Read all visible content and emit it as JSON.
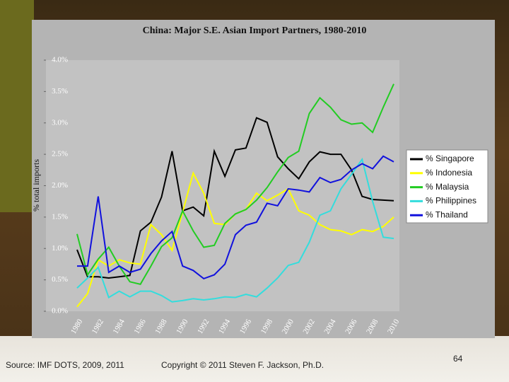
{
  "chart_data": {
    "type": "line",
    "title": "China: Major S.E. Asian Import Partners, 1980-2010",
    "y_label": "% total imports",
    "categories": [
      "1980",
      null,
      "1982",
      null,
      "1984",
      null,
      "1986",
      null,
      "1988",
      null,
      "1990",
      null,
      "1992",
      null,
      "1994",
      null,
      "1996",
      null,
      "1998",
      null,
      "2000",
      null,
      "2002",
      null,
      "2004",
      null,
      "2006",
      null,
      "2008",
      null,
      "2010"
    ],
    "series": [
      {
        "name": "% Singapore",
        "color": "#000000",
        "values": [
          0.98,
          0.55,
          0.55,
          0.53,
          0.55,
          0.57,
          1.28,
          1.42,
          1.82,
          2.55,
          1.6,
          1.66,
          1.52,
          2.55,
          2.15,
          2.57,
          2.6,
          3.08,
          3.01,
          2.46,
          2.27,
          2.11,
          2.38,
          2.54,
          2.5,
          2.5,
          2.25,
          1.83,
          1.78,
          1.77,
          1.76
        ]
      },
      {
        "name": "% Indonesia",
        "color": "#ffff00",
        "values": [
          0.07,
          0.28,
          0.82,
          0.72,
          0.82,
          0.77,
          0.75,
          1.38,
          1.22,
          0.97,
          1.58,
          2.2,
          1.88,
          1.4,
          1.38,
          1.55,
          1.62,
          1.88,
          1.76,
          1.85,
          1.95,
          1.6,
          1.53,
          1.38,
          1.3,
          1.28,
          1.22,
          1.3,
          1.27,
          1.35,
          1.5
        ]
      },
      {
        "name": "% Malaysia",
        "color": "#22cc22",
        "values": [
          1.23,
          0.58,
          0.83,
          1.02,
          0.72,
          0.47,
          0.43,
          0.72,
          1.03,
          1.17,
          1.6,
          1.28,
          1.02,
          1.05,
          1.4,
          1.55,
          1.62,
          1.77,
          1.97,
          2.22,
          2.45,
          2.55,
          3.15,
          3.4,
          3.25,
          3.05,
          2.98,
          3.0,
          2.85,
          3.25,
          3.62
        ]
      },
      {
        "name": "% Philippines",
        "color": "#33dddd",
        "values": [
          0.37,
          0.53,
          0.7,
          0.22,
          0.32,
          0.23,
          0.32,
          0.32,
          0.25,
          0.15,
          0.17,
          0.2,
          0.18,
          0.2,
          0.23,
          0.22,
          0.27,
          0.23,
          0.37,
          0.53,
          0.73,
          0.78,
          1.1,
          1.53,
          1.6,
          1.95,
          2.18,
          2.42,
          1.75,
          1.18,
          1.16
        ]
      },
      {
        "name": "% Thailand",
        "color": "#1111dd",
        "values": [
          0.72,
          0.72,
          1.83,
          0.62,
          0.72,
          0.62,
          0.67,
          0.92,
          1.12,
          1.27,
          0.72,
          0.65,
          0.52,
          0.58,
          0.75,
          1.22,
          1.37,
          1.42,
          1.72,
          1.68,
          1.95,
          1.93,
          1.9,
          2.13,
          2.05,
          2.1,
          2.25,
          2.35,
          2.27,
          2.47,
          2.38
        ]
      }
    ],
    "ylim": [
      0,
      4
    ],
    "yticks": [
      {
        "value": 0,
        "label": "0.0%"
      },
      {
        "value": 0.5,
        "label": "0.5%"
      },
      {
        "value": 1,
        "label": "1.0%"
      },
      {
        "value": 1.5,
        "label": "1.5%"
      },
      {
        "value": 2,
        "label": "2.0%"
      },
      {
        "value": 2.5,
        "label": "2.5%"
      },
      {
        "value": 3,
        "label": "3.0%"
      },
      {
        "value": 3.5,
        "label": "3.5%"
      },
      {
        "value": 4,
        "label": "4.0%"
      }
    ],
    "legend": "right"
  },
  "source": "Source: IMF DOTS, 2009, 2011",
  "copyright": "Copyright © 2011 Steven F. Jackson, Ph.D.",
  "page_number": "64"
}
